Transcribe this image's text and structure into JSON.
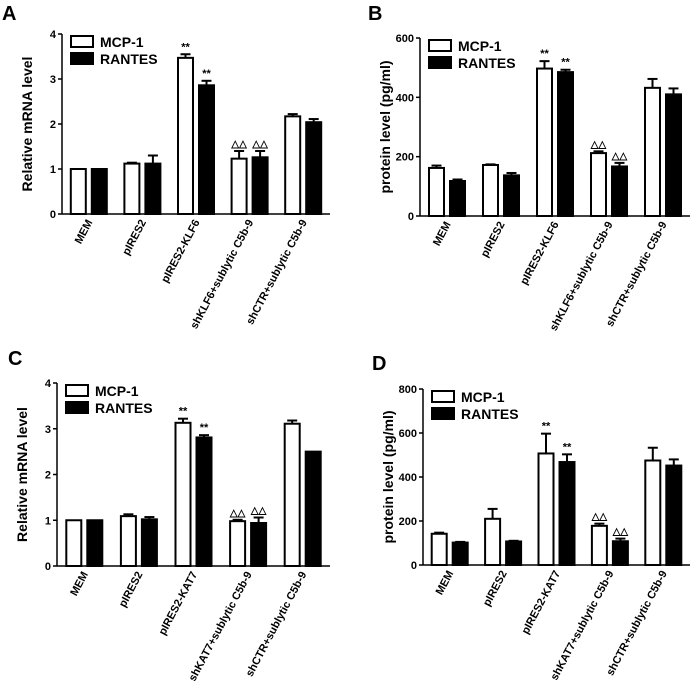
{
  "chart_data": [
    {
      "panel": "A",
      "type": "bar",
      "ylabel": "Relative mRNA level",
      "ylim": [
        0,
        4
      ],
      "yticks": [
        0,
        1,
        2,
        3,
        4
      ],
      "categories": [
        "MEM",
        "pIRES2",
        "pIRES2-KLF6",
        "shKLF6+sublytic C5b-9",
        "shCTR+sublytic C5b-9"
      ],
      "legend_placement": "top-left",
      "series": [
        {
          "name": "MCP-1",
          "fill": "#ffffff",
          "values": [
            1.0,
            1.12,
            3.47,
            1.23,
            2.17
          ],
          "errors": [
            0,
            0.02,
            0.08,
            0.17,
            0.05
          ],
          "annotations": [
            "",
            "",
            "**",
            "△△",
            ""
          ]
        },
        {
          "name": "RANTES",
          "fill": "#000000",
          "values": [
            1.0,
            1.12,
            2.86,
            1.26,
            2.04
          ],
          "errors": [
            0,
            0.18,
            0.1,
            0.14,
            0.07
          ],
          "annotations": [
            "",
            "",
            "**",
            "△△",
            ""
          ]
        }
      ]
    },
    {
      "panel": "B",
      "type": "bar",
      "ylabel": "protein level (pg/ml)",
      "ylim": [
        0,
        600
      ],
      "yticks": [
        0,
        200,
        400,
        600
      ],
      "categories": [
        "MEM",
        "pIRES2",
        "pIRES2-KLF6",
        "shKLF6+sublytic C5b-9",
        "shCTR+sublytic C5b-9"
      ],
      "legend_placement": "top-left",
      "series": [
        {
          "name": "MCP-1",
          "fill": "#ffffff",
          "values": [
            162,
            172,
            497,
            212,
            432
          ],
          "errors": [
            8,
            2,
            25,
            6,
            30
          ],
          "annotations": [
            "",
            "",
            "**",
            "△△",
            ""
          ]
        },
        {
          "name": "RANTES",
          "fill": "#000000",
          "values": [
            118,
            137,
            485,
            167,
            410
          ],
          "errors": [
            5,
            8,
            8,
            12,
            20
          ],
          "annotations": [
            "",
            "",
            "**",
            "△△",
            ""
          ]
        }
      ]
    },
    {
      "panel": "C",
      "type": "bar",
      "ylabel": "Relative mRNA level",
      "ylim": [
        0,
        4
      ],
      "yticks": [
        0,
        1,
        2,
        3,
        4
      ],
      "categories": [
        "MEM",
        "pIRES2",
        "pIRES2-KAT7",
        "shKAT7+sublytic C5b-9",
        "shCTR+sublytic C5b-9"
      ],
      "legend_placement": "top-left",
      "series": [
        {
          "name": "MCP-1",
          "fill": "#ffffff",
          "values": [
            1.0,
            1.09,
            3.13,
            0.98,
            3.11
          ],
          "errors": [
            0,
            0.04,
            0.09,
            0.03,
            0.07
          ],
          "annotations": [
            "",
            "",
            "**",
            "△△",
            ""
          ]
        },
        {
          "name": "RANTES",
          "fill": "#000000",
          "values": [
            1.0,
            1.02,
            2.81,
            0.94,
            2.5
          ],
          "errors": [
            0,
            0.05,
            0.05,
            0.12,
            0
          ],
          "annotations": [
            "",
            "",
            "**",
            "△△",
            ""
          ]
        }
      ]
    },
    {
      "panel": "D",
      "type": "bar",
      "ylabel": "protein level (pg/ml)",
      "ylim": [
        0,
        800
      ],
      "yticks": [
        0,
        200,
        400,
        600,
        800
      ],
      "categories": [
        "MEM",
        "pIRES2",
        "pIRES2-KAT7",
        "shKAT7+sublytic C5b-9",
        "shCTR+sublytic C5b-9"
      ],
      "legend_placement": "top-left",
      "series": [
        {
          "name": "MCP-1",
          "fill": "#ffffff",
          "values": [
            142,
            210,
            507,
            178,
            475
          ],
          "errors": [
            5,
            45,
            90,
            10,
            58
          ],
          "annotations": [
            "",
            "",
            "**",
            "△△",
            ""
          ]
        },
        {
          "name": "RANTES",
          "fill": "#000000",
          "values": [
            102,
            107,
            468,
            108,
            452
          ],
          "errors": [
            3,
            3,
            35,
            12,
            28
          ],
          "annotations": [
            "",
            "",
            "**",
            "△△",
            ""
          ]
        }
      ]
    }
  ]
}
